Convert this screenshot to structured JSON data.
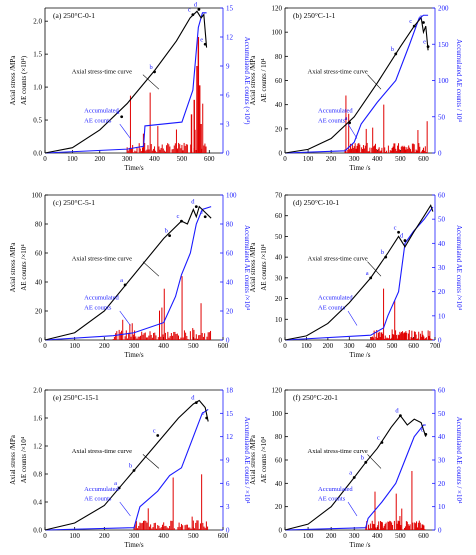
{
  "colors": {
    "stress": "#000000",
    "accum": "#1a1aff",
    "ae": "#e00000"
  },
  "chart_data": [
    {
      "id": "a",
      "type": "line",
      "title": "(a) 250°C-0-1",
      "xlabel": "Time/s",
      "ylabel_left": "Axial stress /MPa",
      "ylabel_mid": "AE counts (×10⁴)",
      "ylabel_right": "Accumulated AE counts (×10⁴)",
      "xlim": [
        0,
        650
      ],
      "ylim_left": [
        0,
        2.2
      ],
      "ylim_right": [
        0,
        15
      ],
      "xticks": [
        0,
        100,
        200,
        300,
        400,
        500,
        600
      ],
      "yticks_left": [
        0.0,
        0.5,
        1.0,
        1.5,
        2.0
      ],
      "yticks_right": [
        0,
        3,
        6,
        9,
        12,
        15
      ],
      "series": [
        {
          "name": "Axial stress-time curve",
          "axis": "left",
          "x": [
            0,
            100,
            200,
            300,
            400,
            480,
            530,
            555,
            570,
            580,
            590
          ],
          "y": [
            0,
            0.08,
            0.35,
            0.75,
            1.25,
            1.7,
            2.05,
            2.15,
            2.05,
            2.1,
            1.6
          ]
        },
        {
          "name": "Accumulated AE counts",
          "axis": "right",
          "x": [
            0,
            300,
            360,
            365,
            500,
            540,
            560,
            575,
            590
          ],
          "y": [
            0,
            0.4,
            0.7,
            2.8,
            3.2,
            6.5,
            13,
            14.5,
            14.5
          ]
        },
        {
          "name": "AE counts",
          "axis": "right",
          "bars_x": [
            360,
            535,
            545,
            555,
            560,
            565,
            570
          ],
          "bars_y": [
            2.0,
            4.0,
            5.5,
            9.0,
            12.0,
            7.0,
            3.0
          ]
        }
      ],
      "points": [
        {
          "label": "a",
          "x": 280,
          "y": 0.55
        },
        {
          "label": "b",
          "x": 400,
          "y": 1.23
        },
        {
          "label": "c",
          "x": 540,
          "y": 2.1
        },
        {
          "label": "d",
          "x": 562,
          "y": 2.18
        },
        {
          "label": "e",
          "x": 585,
          "y": 1.65
        }
      ],
      "annotations": [
        "Axial stress-time curve",
        "Accumulated AE counts"
      ]
    },
    {
      "id": "b",
      "type": "line",
      "title": "(b) 250°C-1-1",
      "xlabel": "Time /s",
      "ylabel_left": "Axial stress /MPa",
      "ylabel_mid": "AE counts / 10⁴",
      "ylabel_right": "Accumulated AE counts / 10⁴",
      "xlim": [
        0,
        650
      ],
      "ylim_left": [
        0,
        120
      ],
      "ylim_right": [
        0,
        200
      ],
      "xticks": [
        0,
        100,
        200,
        300,
        400,
        500,
        600
      ],
      "yticks_left": [
        0,
        20,
        40,
        60,
        80,
        100,
        120
      ],
      "yticks_right": [
        0,
        50,
        100,
        150,
        200
      ],
      "series": [
        {
          "name": "Axial stress-time curve",
          "axis": "left",
          "x": [
            0,
            100,
            200,
            300,
            400,
            500,
            560,
            590,
            600,
            610,
            620
          ],
          "y": [
            0,
            3,
            12,
            30,
            58,
            88,
            105,
            112,
            100,
            105,
            85
          ]
        },
        {
          "name": "Accumulated AE counts",
          "axis": "right",
          "x": [
            0,
            260,
            300,
            330,
            400,
            480,
            540,
            580,
            600,
            620
          ],
          "y": [
            0,
            3,
            15,
            40,
            70,
            100,
            150,
            185,
            190,
            190
          ]
        }
      ],
      "points": [
        {
          "label": "a",
          "x": 280,
          "y": 25
        },
        {
          "label": "b",
          "x": 480,
          "y": 82
        },
        {
          "label": "c",
          "x": 560,
          "y": 105
        },
        {
          "label": "d",
          "x": 600,
          "y": 108
        },
        {
          "label": "e",
          "x": 620,
          "y": 88
        }
      ],
      "annotations": [
        "Axial stress-time curve",
        "Accumulated AE counts"
      ]
    },
    {
      "id": "c",
      "type": "line",
      "title": "(c) 250°C-5-1",
      "xlabel": "Time/s",
      "ylabel_left": "Axial stress /MPa",
      "ylabel_mid": "AE counts /×10⁴",
      "ylabel_right": "Accumulated AE counts /×10⁴",
      "xlim": [
        0,
        600
      ],
      "ylim_left": [
        0,
        100
      ],
      "ylim_right": [
        0,
        100
      ],
      "xticks": [
        0,
        100,
        200,
        300,
        400,
        500,
        600
      ],
      "yticks_left": [
        0,
        20,
        40,
        60,
        80,
        100
      ],
      "yticks_right": [
        0,
        20,
        40,
        60,
        80,
        100
      ],
      "series": [
        {
          "name": "Axial stress-time curve",
          "axis": "left",
          "x": [
            0,
            100,
            200,
            300,
            400,
            460,
            480,
            500,
            510,
            520,
            540,
            560
          ],
          "y": [
            0,
            5,
            20,
            45,
            70,
            82,
            80,
            90,
            85,
            92,
            88,
            84
          ]
        },
        {
          "name": "Accumulated AE counts",
          "axis": "right",
          "x": [
            0,
            230,
            300,
            400,
            440,
            460,
            490,
            510,
            530,
            560
          ],
          "y": [
            0,
            3,
            5,
            12,
            30,
            45,
            60,
            80,
            90,
            92
          ]
        }
      ],
      "points": [
        {
          "label": "a",
          "x": 270,
          "y": 38
        },
        {
          "label": "b",
          "x": 420,
          "y": 72
        },
        {
          "label": "c",
          "x": 460,
          "y": 82
        },
        {
          "label": "d",
          "x": 510,
          "y": 92
        },
        {
          "label": "e",
          "x": 540,
          "y": 85
        }
      ],
      "annotations": [
        "Axial stress-time curve",
        "Accumulated AE counts"
      ]
    },
    {
      "id": "d",
      "type": "line",
      "title": "(d) 250°C-10-1",
      "xlabel": "Time /s",
      "ylabel_left": "Axial stress /MPa",
      "ylabel_mid": "AE counts /×10⁴",
      "ylabel_right": "Accumulated AE counts /×10⁴",
      "xlim": [
        0,
        700
      ],
      "ylim_left": [
        0,
        70
      ],
      "ylim_right": [
        0,
        60
      ],
      "xticks": [
        0,
        100,
        200,
        300,
        400,
        500,
        600,
        700
      ],
      "yticks_left": [
        0,
        10,
        20,
        30,
        40,
        50,
        60,
        70
      ],
      "yticks_right": [
        0,
        10,
        20,
        30,
        40,
        50,
        60
      ],
      "series": [
        {
          "name": "Axial stress-time curve",
          "axis": "left",
          "x": [
            0,
            100,
            200,
            300,
            400,
            480,
            530,
            560,
            600,
            650,
            680,
            690
          ],
          "y": [
            0,
            2,
            8,
            18,
            30,
            42,
            50,
            45,
            52,
            60,
            65,
            62
          ]
        },
        {
          "name": "Accumulated AE counts",
          "axis": "right",
          "x": [
            0,
            400,
            460,
            480,
            530,
            560,
            600,
            650,
            690
          ],
          "y": [
            0,
            2,
            5,
            10,
            20,
            40,
            45,
            50,
            55
          ]
        }
      ],
      "points": [
        {
          "label": "a",
          "x": 400,
          "y": 30
        },
        {
          "label": "b",
          "x": 470,
          "y": 40
        },
        {
          "label": "c",
          "x": 530,
          "y": 52
        },
        {
          "label": "d",
          "x": 560,
          "y": 48
        }
      ],
      "annotations": [
        "Axial stress-time curve",
        "Accumulated AE counts"
      ]
    },
    {
      "id": "e",
      "type": "line",
      "title": "(e) 250°C-15-1",
      "xlabel": "Time/s",
      "ylabel_left": "Axial stress /MPa",
      "ylabel_mid": "AE counts /×10⁴",
      "ylabel_right": "Accumulated AE counts / ×10⁴",
      "xlim": [
        0,
        600
      ],
      "ylim_left": [
        0,
        2.0
      ],
      "ylim_right": [
        0,
        18
      ],
      "xticks": [
        0,
        100,
        200,
        300,
        400,
        500,
        600
      ],
      "yticks_left": [
        0.0,
        0.4,
        0.8,
        1.2,
        1.6,
        2.0
      ],
      "yticks_right": [
        0,
        3,
        6,
        9,
        12,
        15,
        18
      ],
      "series": [
        {
          "name": "Axial stress-time curve",
          "axis": "left",
          "x": [
            0,
            100,
            200,
            300,
            400,
            450,
            500,
            520,
            540,
            550
          ],
          "y": [
            0,
            0.1,
            0.35,
            0.85,
            1.35,
            1.6,
            1.8,
            1.85,
            1.75,
            1.55
          ]
        },
        {
          "name": "Accumulated AE counts",
          "axis": "right",
          "x": [
            0,
            300,
            320,
            380,
            420,
            460,
            500,
            530,
            550
          ],
          "y": [
            0,
            0.3,
            3,
            5,
            7,
            8,
            12,
            15,
            15.5
          ]
        }
      ],
      "points": [
        {
          "label": "a",
          "x": 250,
          "y": 0.6
        },
        {
          "label": "b",
          "x": 300,
          "y": 0.85
        },
        {
          "label": "c",
          "x": 380,
          "y": 1.35
        },
        {
          "label": "d",
          "x": 510,
          "y": 1.82
        },
        {
          "label": "e",
          "x": 545,
          "y": 1.6
        }
      ],
      "annotations": [
        "Axial stress-time curve",
        "Accumulated AE counts"
      ]
    },
    {
      "id": "f",
      "type": "line",
      "title": "(f) 250°C-20-1",
      "xlabel": "Time /s",
      "ylabel_left": "Axial stress /MPa",
      "ylabel_mid": "AE counts /×10⁴",
      "ylabel_right": "Accumulated AE counts / ×10⁴",
      "xlim": [
        0,
        650
      ],
      "ylim_left": [
        0,
        120
      ],
      "ylim_right": [
        0,
        60
      ],
      "xticks": [
        0,
        100,
        200,
        300,
        400,
        500,
        600
      ],
      "yticks_left": [
        0,
        20,
        40,
        60,
        80,
        100,
        120
      ],
      "yticks_right": [
        0,
        10,
        20,
        30,
        40,
        50,
        60
      ],
      "series": [
        {
          "name": "Axial stress-time curve",
          "axis": "left",
          "x": [
            0,
            100,
            200,
            300,
            350,
            400,
            460,
            500,
            530,
            560,
            590,
            610
          ],
          "y": [
            0,
            5,
            20,
            45,
            58,
            70,
            88,
            98,
            90,
            95,
            92,
            80
          ]
        },
        {
          "name": "Accumulated AE counts",
          "axis": "right",
          "x": [
            0,
            350,
            360,
            420,
            480,
            520,
            560,
            600,
            610
          ],
          "y": [
            0,
            1,
            5,
            12,
            20,
            30,
            40,
            45,
            45
          ]
        }
      ],
      "points": [
        {
          "label": "a",
          "x": 300,
          "y": 45
        },
        {
          "label": "b",
          "x": 350,
          "y": 58
        },
        {
          "label": "c",
          "x": 420,
          "y": 75
        },
        {
          "label": "d",
          "x": 500,
          "y": 98
        },
        {
          "label": "e",
          "x": 610,
          "y": 82
        }
      ],
      "annotations": [
        "Axial stress-time curve",
        "Accumulated AE counts"
      ]
    }
  ]
}
